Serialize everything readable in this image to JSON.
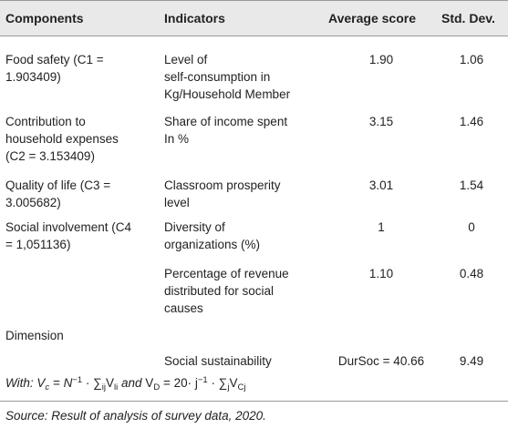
{
  "headers": {
    "components": "Components",
    "indicators": "Indicators",
    "average": "Average score",
    "stddev": "Std. Dev."
  },
  "rows": [
    {
      "component": [
        "Food safety (C1 =",
        "1.903409)"
      ],
      "indicator": [
        "Level of",
        "self-consumption in",
        "Kg/Household Member"
      ],
      "average": "1.90",
      "stddev": "1.06"
    },
    {
      "component": [
        "Contribution to",
        "household expenses",
        "(C2 = 3.153409)"
      ],
      "indicator": [
        "Share of income spent",
        "In %"
      ],
      "average": "3.15",
      "stddev": "1.46"
    },
    {
      "component": [
        "Quality of life (C3 =",
        "3.005682)"
      ],
      "indicator": [
        "Classroom prosperity",
        "level"
      ],
      "average": "3.01",
      "stddev": "1.54"
    },
    {
      "component": [
        "Social involvement (C4",
        "= 1,051136)"
      ],
      "indicator": [
        "Diversity of",
        "organizations (%)"
      ],
      "average": "1",
      "stddev": "0"
    },
    {
      "component": [],
      "indicator": [
        "Percentage of revenue",
        "distributed for social",
        "causes"
      ],
      "average": "1.10",
      "stddev": "0.48"
    }
  ],
  "dimension": {
    "label": "Dimension",
    "indicator": "Social sustainability",
    "average": "DurSoc = 40.66",
    "stddev": "9.49"
  },
  "formula": {
    "with": "With:",
    "vc": "V",
    "c": "c",
    "eq1": " = ",
    "n": "N",
    "minus1a": "−1",
    "dot1": " · ∑",
    "ij": "ij",
    "vli": "V",
    "li": "li",
    "and": " and ",
    "vd": "V",
    "d": "D",
    "eq2": " = 20· j",
    "minus1b": "−1",
    "dot2": " · ∑",
    "j": "j",
    "vcj": "V",
    "cj": "Cj"
  },
  "source": "Source: Result of analysis of survey data, 2020."
}
